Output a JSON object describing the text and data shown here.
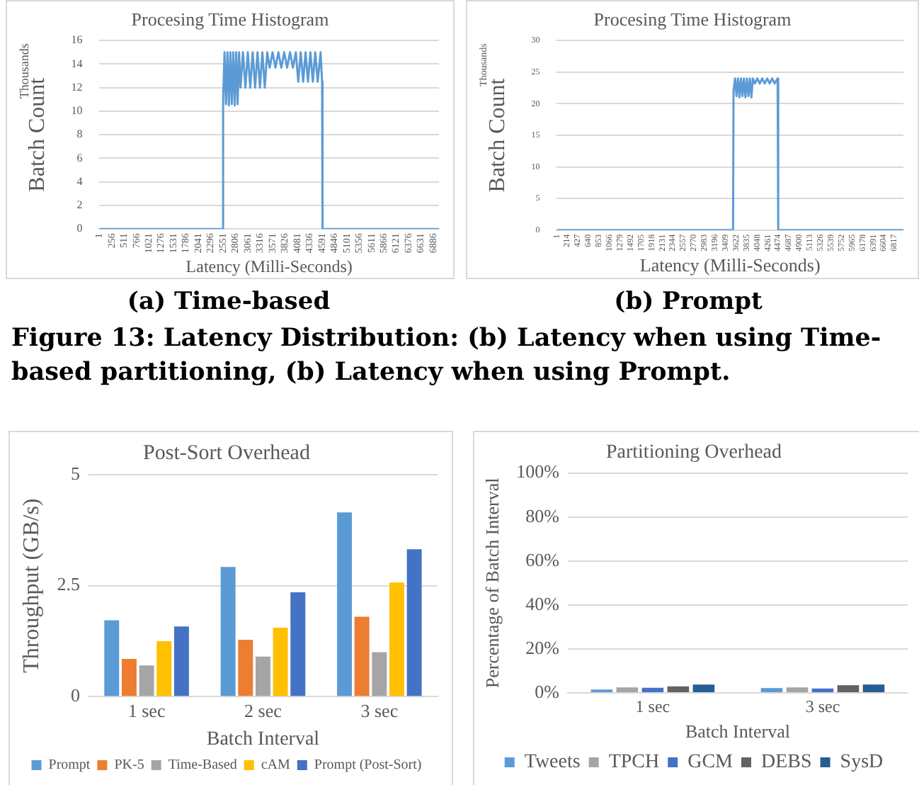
{
  "chart_data": [
    {
      "type": "line",
      "title": "Procesing Time Histogram",
      "xlabel": "Latency (Milli-Seconds)",
      "ylabel": "Batch Count",
      "annotations": [
        "Thousands",
        "(a) Time-based",
        "Figure 13: Latency Distribution: (b) Latency when using Time-based partitioning, (b) Latency when using Prompt."
      ],
      "series": [
        {
          "color": "#5b9bd5",
          "x": [
            1,
            2540,
            2551,
            2580,
            2610,
            2640,
            2670,
            2700,
            2730,
            2760,
            2790,
            2820,
            2850,
            2880,
            2910,
            2960,
            3010,
            3060,
            3110,
            3160,
            3210,
            3260,
            3310,
            3360,
            3410,
            3460,
            3510,
            3570,
            3630,
            3690,
            3750,
            3810,
            3870,
            3930,
            3990,
            4050,
            4100,
            4150,
            4200,
            4250,
            4300,
            4350,
            4400,
            4450,
            4500,
            4560,
            4591,
            4600,
            7000
          ],
          "values": [
            0,
            0,
            11,
            15,
            10.6,
            15,
            10.5,
            15,
            10.6,
            15,
            10.5,
            15,
            10.6,
            15,
            12,
            15,
            12,
            15,
            12,
            15,
            12,
            15,
            12,
            15,
            12,
            15,
            13.7,
            15,
            13.7,
            15,
            13.7,
            15,
            13.7,
            15,
            13.7,
            15,
            12.5,
            15,
            12.5,
            15,
            12.5,
            15,
            12.5,
            15,
            12.5,
            15,
            12.5,
            0,
            0
          ]
        }
      ],
      "xlim": [
        1,
        7000
      ],
      "xticks": [
        1,
        256,
        511,
        766,
        1021,
        1276,
        1531,
        1786,
        2041,
        2296,
        2551,
        2806,
        3061,
        3316,
        3571,
        3826,
        4081,
        4336,
        4591,
        4846,
        5101,
        5356,
        5611,
        5866,
        6121,
        6376,
        6631,
        6886
      ],
      "ylim": [
        0,
        16
      ],
      "yticks": [
        0,
        2,
        4,
        6,
        8,
        10,
        12,
        14,
        16
      ],
      "grid": "y",
      "marker": "none"
    },
    {
      "type": "line",
      "title": "Procesing Time Histogram",
      "xlabel": "Latency (Milli-Seconds)",
      "ylabel": "Batch Count",
      "annotations": [
        "Thousands",
        "(b) Prompt"
      ],
      "series": [
        {
          "color": "#5b9bd5",
          "x": [
            1,
            3560,
            3570,
            3600,
            3630,
            3660,
            3690,
            3720,
            3750,
            3780,
            3810,
            3840,
            3870,
            3900,
            3930,
            3960,
            4000,
            4050,
            4100,
            4150,
            4200,
            4250,
            4300,
            4350,
            4400,
            4460,
            4470,
            4474,
            7000
          ],
          "values": [
            0,
            0,
            22,
            24,
            21.2,
            24,
            21,
            24,
            21.2,
            24,
            21,
            24,
            21.2,
            24,
            21,
            24,
            23.2,
            24,
            23.2,
            24,
            23.2,
            24,
            23.2,
            24,
            23.2,
            24,
            24,
            0,
            0
          ]
        }
      ],
      "xlim": [
        1,
        7000
      ],
      "xticks": [
        1,
        214,
        427,
        640,
        853,
        1066,
        1279,
        1492,
        1705,
        1918,
        2131,
        2344,
        2557,
        2770,
        2983,
        3196,
        3409,
        3622,
        3835,
        4048,
        4261,
        4474,
        4687,
        4900,
        5113,
        5326,
        5539,
        5752,
        5965,
        6178,
        6391,
        6604,
        6817
      ],
      "ylim": [
        0,
        30
      ],
      "yticks": [
        0,
        5,
        10,
        15,
        20,
        25,
        30
      ],
      "grid": "y",
      "marker": "none"
    },
    {
      "type": "bar",
      "title": "Post-Sort Overhead",
      "xlabel": "Batch Interval",
      "ylabel": "Throughput (GB/s)",
      "categories": [
        "1 sec",
        "2 sec",
        "3 sec"
      ],
      "series": [
        {
          "name": "Prompt",
          "color": "#5b9bd5",
          "values": [
            1.72,
            2.92,
            4.15
          ]
        },
        {
          "name": "PK-5",
          "color": "#ed7d31",
          "values": [
            0.85,
            1.28,
            1.8
          ]
        },
        {
          "name": "Time-Based",
          "color": "#a5a5a5",
          "values": [
            0.7,
            0.9,
            1.0
          ]
        },
        {
          "name": "cAM",
          "color": "#ffc000",
          "values": [
            1.25,
            1.55,
            2.57
          ]
        },
        {
          "name": "Prompt (Post-Sort)",
          "color": "#4472c4",
          "values": [
            1.58,
            2.35,
            3.32
          ]
        }
      ],
      "ylim": [
        0,
        5
      ],
      "yticks": [
        0,
        2.5,
        5
      ],
      "grid": "y",
      "legend": "bottom"
    },
    {
      "type": "bar",
      "title": "Partitioning Overhead",
      "xlabel": "Batch Interval",
      "ylabel": "Percentage of Batch Interval",
      "categories": [
        "1 sec",
        "3 sec"
      ],
      "series": [
        {
          "name": "Tweets",
          "color": "#5b9bd5",
          "values": [
            1.5,
            2.2
          ]
        },
        {
          "name": "TPCH",
          "color": "#a5a5a5",
          "values": [
            2.5,
            2.5
          ]
        },
        {
          "name": "GCM",
          "color": "#4472c4",
          "values": [
            2.3,
            2.0
          ]
        },
        {
          "name": "DEBS",
          "color": "#636363",
          "values": [
            3.0,
            3.5
          ]
        },
        {
          "name": "SysD",
          "color": "#255e91",
          "values": [
            3.8,
            3.8
          ]
        }
      ],
      "ylim": [
        0,
        100
      ],
      "yticks": [
        {
          "value": 0,
          "label": "0%"
        },
        {
          "value": 20,
          "label": "20%"
        },
        {
          "value": 40,
          "label": "40%"
        },
        {
          "value": 60,
          "label": "60%"
        },
        {
          "value": 80,
          "label": "80%"
        },
        {
          "value": 100,
          "label": "100%"
        }
      ],
      "grid": "y",
      "legend": "bottom"
    }
  ]
}
